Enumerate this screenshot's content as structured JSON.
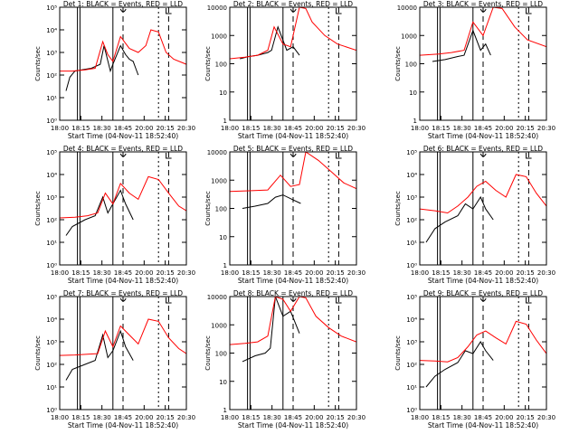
{
  "colors": {
    "events": "#000000",
    "lld": "#ff0000",
    "axis": "#000000"
  },
  "chart_data": [
    {
      "type": "line",
      "title": "Det 1: BLACK = Events, RED = LLD",
      "xlabel": "Start Time (04-Nov-11 18:52:40)",
      "ylabel": "Counts/sec",
      "yscale": "log",
      "ylim": [
        1,
        100000
      ],
      "yticks": [
        "10⁰",
        "10¹",
        "10²",
        "10³",
        "10⁴",
        "10⁵"
      ],
      "xticks": [
        "18:00",
        "18:15",
        "18:30",
        "18:45",
        "20:00",
        "20:15",
        "20:30"
      ],
      "grid": false,
      "series": [
        {
          "name": "Events",
          "color": "#000000",
          "x": [
            0.05,
            0.08,
            0.12,
            0.2,
            0.25,
            0.32,
            0.35,
            0.4,
            0.42,
            0.48,
            0.52,
            0.55,
            0.58,
            0.6,
            0.62
          ],
          "y": [
            20,
            80,
            150,
            180,
            200,
            300,
            2000,
            150,
            300,
            2000,
            800,
            500,
            400,
            200,
            100
          ]
        },
        {
          "name": "LLD",
          "color": "#ff0000",
          "x": [
            0.0,
            0.1,
            0.2,
            0.28,
            0.34,
            0.38,
            0.42,
            0.48,
            0.55,
            0.62,
            0.68,
            0.72,
            0.78,
            0.84,
            0.9,
            1.0
          ],
          "y": [
            150,
            150,
            170,
            200,
            3000,
            800,
            400,
            5000,
            1500,
            1000,
            2000,
            10000,
            8000,
            1000,
            500,
            300
          ]
        }
      ]
    },
    {
      "type": "line",
      "title": "Det 2: BLACK = Events, RED = LLD",
      "xlabel": "Start Time (04-Nov-11 18:52:40)",
      "ylabel": "Counts/sec",
      "yscale": "log",
      "ylim": [
        1,
        10000
      ],
      "yticks": [
        "1",
        "10",
        "100",
        "1000",
        "10000"
      ],
      "xticks": [
        "18:00",
        "18:15",
        "18:30",
        "18:45",
        "20:00",
        "20:15",
        "20:30"
      ],
      "grid": false,
      "series": [
        {
          "name": "Events",
          "color": "#000000",
          "x": [
            0.08,
            0.15,
            0.22,
            0.3,
            0.33,
            0.38,
            0.45,
            0.5,
            0.55
          ],
          "y": [
            150,
            180,
            200,
            250,
            300,
            2000,
            300,
            400,
            200
          ]
        },
        {
          "name": "LLD",
          "color": "#ff0000",
          "x": [
            0.0,
            0.12,
            0.22,
            0.3,
            0.35,
            0.42,
            0.48,
            0.55,
            0.6,
            0.65,
            0.75,
            0.85,
            1.0
          ],
          "y": [
            150,
            170,
            200,
            300,
            2000,
            500,
            400,
            10000,
            9000,
            3000,
            1000,
            500,
            300
          ]
        }
      ]
    },
    {
      "type": "line",
      "title": "Det 3: BLACK = Events, RED = LLD",
      "xlabel": "Start Time (04-Nov-11 18:52:40)",
      "ylabel": "Counts/sec",
      "yscale": "log",
      "ylim": [
        1,
        10000
      ],
      "yticks": [
        "1",
        "10",
        "100",
        "1000",
        "10000"
      ],
      "xticks": [
        "18:00",
        "18:15",
        "18:30",
        "18:45",
        "20:00",
        "20:15",
        "20:30"
      ],
      "grid": false,
      "series": [
        {
          "name": "Events",
          "color": "#000000",
          "x": [
            0.1,
            0.2,
            0.3,
            0.35,
            0.42,
            0.48,
            0.52,
            0.56
          ],
          "y": [
            120,
            140,
            180,
            200,
            1500,
            300,
            500,
            200
          ]
        },
        {
          "name": "LLD",
          "color": "#ff0000",
          "x": [
            0.0,
            0.15,
            0.25,
            0.35,
            0.42,
            0.5,
            0.58,
            0.65,
            0.75,
            0.85,
            1.0
          ],
          "y": [
            200,
            220,
            250,
            300,
            3000,
            1000,
            10000,
            9000,
            2000,
            700,
            400
          ]
        }
      ]
    },
    {
      "type": "line",
      "title": "Det 4: BLACK = Events, RED = LLD",
      "xlabel": "Start Time (04-Nov-11 18:52:40)",
      "ylabel": "Counts/sec",
      "yscale": "log",
      "ylim": [
        1,
        100000
      ],
      "yticks": [
        "10⁰",
        "10¹",
        "10²",
        "10³",
        "10⁴",
        "10⁵"
      ],
      "xticks": [
        "18:00",
        "18:15",
        "18:30",
        "18:45",
        "20:00",
        "20:15",
        "20:30"
      ],
      "grid": false,
      "series": [
        {
          "name": "Events",
          "color": "#000000",
          "x": [
            0.05,
            0.1,
            0.2,
            0.28,
            0.34,
            0.38,
            0.42,
            0.48,
            0.52,
            0.58
          ],
          "y": [
            20,
            50,
            100,
            150,
            1000,
            200,
            500,
            2000,
            500,
            100
          ]
        },
        {
          "name": "LLD",
          "color": "#ff0000",
          "x": [
            0.0,
            0.12,
            0.22,
            0.3,
            0.36,
            0.42,
            0.48,
            0.55,
            0.62,
            0.7,
            0.78,
            0.86,
            0.94,
            1.0
          ],
          "y": [
            120,
            130,
            150,
            200,
            1500,
            500,
            4000,
            1500,
            800,
            8000,
            6000,
            1500,
            400,
            250
          ]
        }
      ]
    },
    {
      "type": "line",
      "title": "Det 5: BLACK = Events, RED = LLD",
      "xlabel": "Start Time (04-Nov-11 18:52:40)",
      "ylabel": "Counts/sec",
      "yscale": "log",
      "ylim": [
        1,
        10000
      ],
      "yticks": [
        "1",
        "10",
        "100",
        "1000",
        "10000"
      ],
      "xticks": [
        "18:00",
        "18:15",
        "18:30",
        "18:45",
        "20:00",
        "20:15",
        "20:30"
      ],
      "grid": false,
      "series": [
        {
          "name": "Events",
          "color": "#000000",
          "x": [
            0.1,
            0.2,
            0.3,
            0.36,
            0.42,
            0.5,
            0.56
          ],
          "y": [
            100,
            120,
            150,
            250,
            300,
            200,
            150
          ]
        },
        {
          "name": "LLD",
          "color": "#ff0000",
          "x": [
            0.0,
            0.15,
            0.3,
            0.4,
            0.48,
            0.55,
            0.6,
            0.7,
            0.8,
            0.9,
            1.0
          ],
          "y": [
            400,
            420,
            450,
            1500,
            600,
            700,
            10000,
            5000,
            2000,
            800,
            500
          ]
        }
      ]
    },
    {
      "type": "line",
      "title": "Det 6: BLACK = Events, RED = LLD",
      "xlabel": "Start Time (04-Nov-11 18:52:40)",
      "ylabel": "Counts/sec",
      "yscale": "log",
      "ylim": [
        1,
        100000
      ],
      "yticks": [
        "10⁰",
        "10¹",
        "10²",
        "10³",
        "10⁴",
        "10⁵"
      ],
      "xticks": [
        "18:00",
        "18:15",
        "18:30",
        "18:45",
        "20:00",
        "20:15",
        "20:30"
      ],
      "grid": false,
      "series": [
        {
          "name": "Events",
          "color": "#000000",
          "x": [
            0.05,
            0.12,
            0.2,
            0.3,
            0.36,
            0.42,
            0.48,
            0.52,
            0.58
          ],
          "y": [
            10,
            40,
            80,
            150,
            500,
            300,
            1000,
            300,
            100
          ]
        },
        {
          "name": "LLD",
          "color": "#ff0000",
          "x": [
            0.0,
            0.12,
            0.22,
            0.3,
            0.38,
            0.45,
            0.52,
            0.6,
            0.68,
            0.76,
            0.84,
            0.92,
            1.0
          ],
          "y": [
            300,
            250,
            200,
            400,
            1000,
            3000,
            5000,
            2000,
            1000,
            10000,
            8000,
            1500,
            400
          ]
        }
      ]
    },
    {
      "type": "line",
      "title": "Det 7: BLACK = Events, RED = LLD",
      "xlabel": "Start Time (04-Nov-11 18:52:40)",
      "ylabel": "Counts/sec",
      "yscale": "log",
      "ylim": [
        1,
        100000
      ],
      "yticks": [
        "10⁰",
        "10¹",
        "10²",
        "10³",
        "10⁴",
        "10⁵"
      ],
      "xticks": [
        "18:00",
        "18:15",
        "18:30",
        "18:45",
        "20:00",
        "20:15",
        "20:30"
      ],
      "grid": false,
      "series": [
        {
          "name": "Events",
          "color": "#000000",
          "x": [
            0.05,
            0.1,
            0.2,
            0.28,
            0.34,
            0.38,
            0.42,
            0.48,
            0.52,
            0.58
          ],
          "y": [
            20,
            60,
            100,
            150,
            2000,
            200,
            400,
            3000,
            600,
            150
          ]
        },
        {
          "name": "LLD",
          "color": "#ff0000",
          "x": [
            0.0,
            0.12,
            0.22,
            0.3,
            0.36,
            0.42,
            0.48,
            0.55,
            0.62,
            0.7,
            0.78,
            0.86,
            0.94,
            1.0
          ],
          "y": [
            250,
            260,
            280,
            300,
            3000,
            600,
            5000,
            2000,
            800,
            10000,
            8000,
            1500,
            500,
            300
          ]
        }
      ]
    },
    {
      "type": "line",
      "title": "Det 8: BLACK = Events, RED = LLD",
      "xlabel": "Start Time (04-Nov-11 18:52:40)",
      "ylabel": "Counts/sec",
      "yscale": "log",
      "ylim": [
        1,
        10000
      ],
      "yticks": [
        "1",
        "10",
        "100",
        "1000",
        "10000"
      ],
      "xticks": [
        "18:00",
        "18:15",
        "18:30",
        "18:45",
        "20:00",
        "20:15",
        "20:30"
      ],
      "grid": false,
      "series": [
        {
          "name": "Events",
          "color": "#000000",
          "x": [
            0.1,
            0.2,
            0.28,
            0.32,
            0.36,
            0.42,
            0.48,
            0.55
          ],
          "y": [
            50,
            80,
            100,
            150,
            10000,
            2000,
            3000,
            500
          ]
        },
        {
          "name": "LLD",
          "color": "#ff0000",
          "x": [
            0.0,
            0.12,
            0.22,
            0.3,
            0.36,
            0.42,
            0.48,
            0.55,
            0.6,
            0.68,
            0.78,
            0.88,
            1.0
          ],
          "y": [
            200,
            220,
            250,
            400,
            10000,
            8000,
            3000,
            10000,
            9000,
            2000,
            800,
            400,
            250
          ]
        }
      ]
    },
    {
      "type": "line",
      "title": "Det 9: BLACK = Events, RED = LLD",
      "xlabel": "Start Time (04-Nov-11 18:52:40)",
      "ylabel": "Counts/sec",
      "yscale": "log",
      "ylim": [
        1,
        100000
      ],
      "yticks": [
        "10⁰",
        "10¹",
        "10²",
        "10³",
        "10⁴",
        "10⁵"
      ],
      "xticks": [
        "18:00",
        "18:15",
        "18:30",
        "18:45",
        "20:00",
        "20:15",
        "20:30"
      ],
      "grid": false,
      "series": [
        {
          "name": "Events",
          "color": "#000000",
          "x": [
            0.05,
            0.12,
            0.2,
            0.3,
            0.36,
            0.42,
            0.48,
            0.52,
            0.58
          ],
          "y": [
            10,
            30,
            60,
            120,
            400,
            300,
            1000,
            400,
            150
          ]
        },
        {
          "name": "LLD",
          "color": "#ff0000",
          "x": [
            0.0,
            0.12,
            0.22,
            0.3,
            0.38,
            0.45,
            0.52,
            0.6,
            0.68,
            0.76,
            0.84,
            0.92,
            1.0
          ],
          "y": [
            150,
            140,
            130,
            200,
            600,
            2000,
            3000,
            1500,
            800,
            8000,
            6000,
            1200,
            300
          ]
        }
      ]
    }
  ]
}
